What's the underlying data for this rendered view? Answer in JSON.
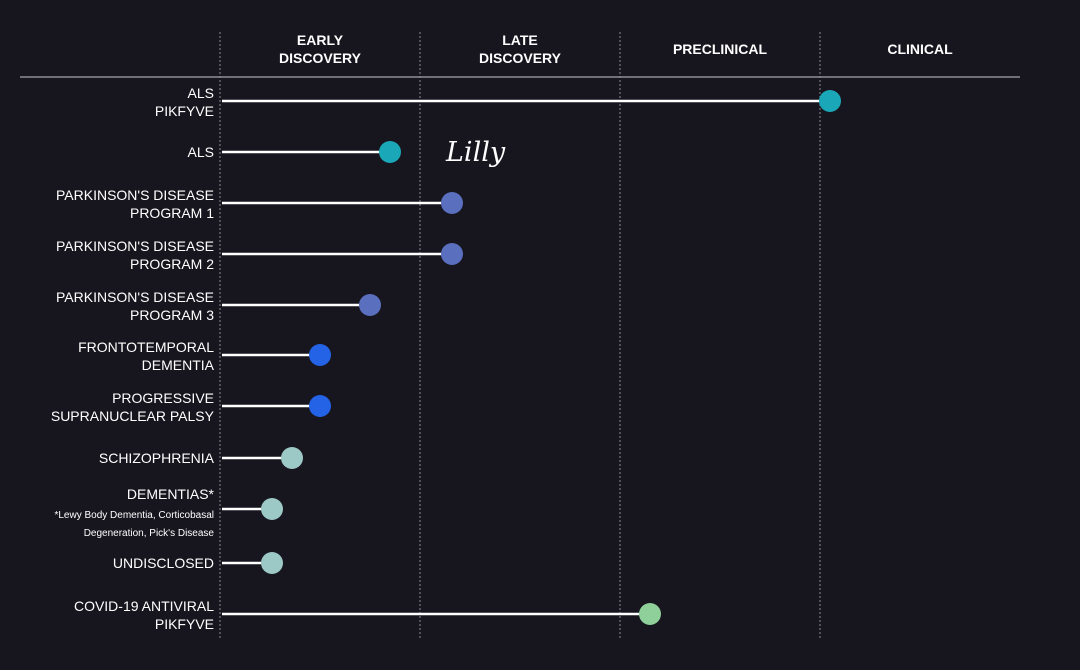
{
  "chart_data": {
    "type": "bar",
    "stages": [
      {
        "lines": [
          "EARLY",
          "DISCOVERY"
        ]
      },
      {
        "lines": [
          "LATE",
          "DISCOVERY"
        ]
      },
      {
        "lines": [
          "PRECLINICAL"
        ]
      },
      {
        "lines": [
          "CLINICAL"
        ]
      }
    ],
    "programs": [
      {
        "label_lines": [
          "ALS",
          "PIKFYVE"
        ],
        "progress": 3.05,
        "color": "#1aa8b8"
      },
      {
        "label_lines": [
          "ALS"
        ],
        "progress": 0.85,
        "color": "#1aa8b8",
        "partner": "Lilly"
      },
      {
        "label_lines": [
          "PARKINSON'S DISEASE",
          "PROGRAM 1"
        ],
        "progress": 1.16,
        "color": "#5b6fbf"
      },
      {
        "label_lines": [
          "PARKINSON'S DISEASE",
          "PROGRAM 2"
        ],
        "progress": 1.16,
        "color": "#5b6fbf"
      },
      {
        "label_lines": [
          "PARKINSON'S DISEASE",
          "PROGRAM 3"
        ],
        "progress": 0.75,
        "color": "#5b6fbf"
      },
      {
        "label_lines": [
          "FRONTOTEMPORAL",
          "DEMENTIA"
        ],
        "progress": 0.5,
        "color": "#2463e6"
      },
      {
        "label_lines": [
          "PROGRESSIVE",
          "SUPRANUCLEAR PALSY"
        ],
        "progress": 0.5,
        "color": "#2463e6"
      },
      {
        "label_lines": [
          "SCHIZOPHRENIA"
        ],
        "progress": 0.36,
        "color": "#9cc9c6"
      },
      {
        "label_lines": [
          "DEMENTIAS*"
        ],
        "note_lines": [
          "*Lewy Body Dementia, Corticobasal",
          "Degeneration, Pick's Disease"
        ],
        "progress": 0.26,
        "color": "#9cc9c6"
      },
      {
        "label_lines": [
          "UNDISCLOSED"
        ],
        "progress": 0.26,
        "color": "#9cc9c6"
      },
      {
        "label_lines": [
          "COVID-19 ANTIVIRAL",
          "PIKFYVE"
        ],
        "progress": 2.15,
        "color": "#8fcf9a"
      }
    ]
  }
}
